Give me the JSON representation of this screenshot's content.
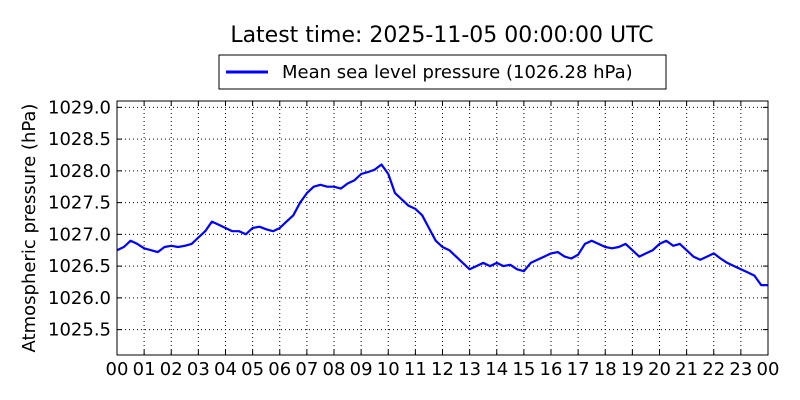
{
  "title": "Latest time: 2025-11-05 00:00:00 UTC",
  "chart_data": {
    "type": "line",
    "title": "Latest time: 2025-11-05 00:00:00 UTC",
    "xlabel": "",
    "ylabel": "Atmospheric pressure (hPa)",
    "xlim": [
      0,
      24
    ],
    "ylim": [
      1025.1,
      1029.1
    ],
    "grid": true,
    "legend_position": "top",
    "x_tick_values": [
      0,
      1,
      2,
      3,
      4,
      5,
      6,
      7,
      8,
      9,
      10,
      11,
      12,
      13,
      14,
      15,
      16,
      17,
      18,
      19,
      20,
      21,
      22,
      23,
      24
    ],
    "x_tick_labels": [
      "00",
      "01",
      "02",
      "03",
      "04",
      "05",
      "06",
      "07",
      "08",
      "09",
      "10",
      "11",
      "12",
      "13",
      "14",
      "15",
      "16",
      "17",
      "18",
      "19",
      "20",
      "21",
      "22",
      "23",
      "00"
    ],
    "y_tick_values": [
      1025.5,
      1026.0,
      1026.5,
      1027.0,
      1027.5,
      1028.0,
      1028.5,
      1029.0
    ],
    "y_tick_labels": [
      "1025.5",
      "1026.0",
      "1026.5",
      "1027.0",
      "1027.5",
      "1028.0",
      "1028.5",
      "1029.0"
    ],
    "series": [
      {
        "name": "Mean sea level pressure (1026.28 hPa)",
        "color": "#0000ff",
        "x": [
          0,
          0.25,
          0.5,
          0.75,
          1,
          1.25,
          1.5,
          1.75,
          2,
          2.25,
          2.5,
          2.75,
          3,
          3.25,
          3.5,
          3.75,
          4,
          4.25,
          4.5,
          4.75,
          5,
          5.25,
          5.5,
          5.75,
          6,
          6.25,
          6.5,
          6.75,
          7,
          7.25,
          7.5,
          7.75,
          8,
          8.25,
          8.5,
          8.75,
          9,
          9.25,
          9.5,
          9.75,
          10,
          10.25,
          10.5,
          10.75,
          11,
          11.25,
          11.5,
          11.75,
          12,
          12.25,
          12.5,
          12.75,
          13,
          13.25,
          13.5,
          13.75,
          14,
          14.25,
          14.5,
          14.75,
          15,
          15.25,
          15.5,
          15.75,
          16,
          16.25,
          16.5,
          16.75,
          17,
          17.25,
          17.5,
          17.75,
          18,
          18.25,
          18.5,
          18.75,
          19,
          19.25,
          19.5,
          19.75,
          20,
          20.25,
          20.5,
          20.75,
          21,
          21.25,
          21.5,
          21.75,
          22,
          22.25,
          22.5,
          22.75,
          23,
          23.25,
          23.5,
          23.75,
          24
        ],
        "y": [
          1026.75,
          1026.8,
          1026.9,
          1026.85,
          1026.78,
          1026.75,
          1026.72,
          1026.8,
          1026.82,
          1026.8,
          1026.82,
          1026.85,
          1026.95,
          1027.05,
          1027.2,
          1027.15,
          1027.1,
          1027.05,
          1027.05,
          1027.0,
          1027.1,
          1027.12,
          1027.08,
          1027.05,
          1027.1,
          1027.2,
          1027.3,
          1027.5,
          1027.65,
          1027.75,
          1027.78,
          1027.75,
          1027.75,
          1027.72,
          1027.8,
          1027.85,
          1027.95,
          1027.98,
          1028.02,
          1028.1,
          1027.95,
          1027.65,
          1027.55,
          1027.45,
          1027.4,
          1027.3,
          1027.1,
          1026.9,
          1026.8,
          1026.75,
          1026.65,
          1026.55,
          1026.45,
          1026.5,
          1026.55,
          1026.5,
          1026.55,
          1026.5,
          1026.52,
          1026.45,
          1026.42,
          1026.55,
          1026.6,
          1026.65,
          1026.7,
          1026.72,
          1026.65,
          1026.62,
          1026.68,
          1026.85,
          1026.9,
          1026.85,
          1026.8,
          1026.78,
          1026.8,
          1026.85,
          1026.75,
          1026.65,
          1026.7,
          1026.75,
          1026.85,
          1026.9,
          1026.82,
          1026.85,
          1026.75,
          1026.65,
          1026.6,
          1026.65,
          1026.7,
          1026.62,
          1026.55,
          1026.5,
          1026.45,
          1026.4,
          1026.35,
          1026.2,
          1026.2
        ]
      }
    ]
  }
}
